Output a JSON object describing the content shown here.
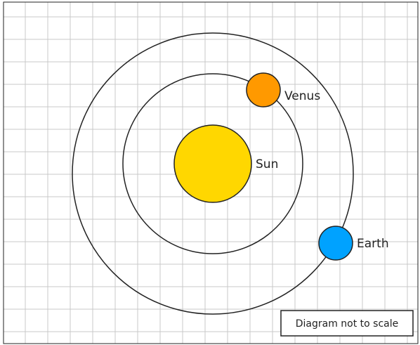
{
  "bodies": [
    {
      "label": "Sun"
    },
    {
      "label": "Venus"
    },
    {
      "label": "Earth"
    }
  ],
  "note": "Diagram not to scale"
}
